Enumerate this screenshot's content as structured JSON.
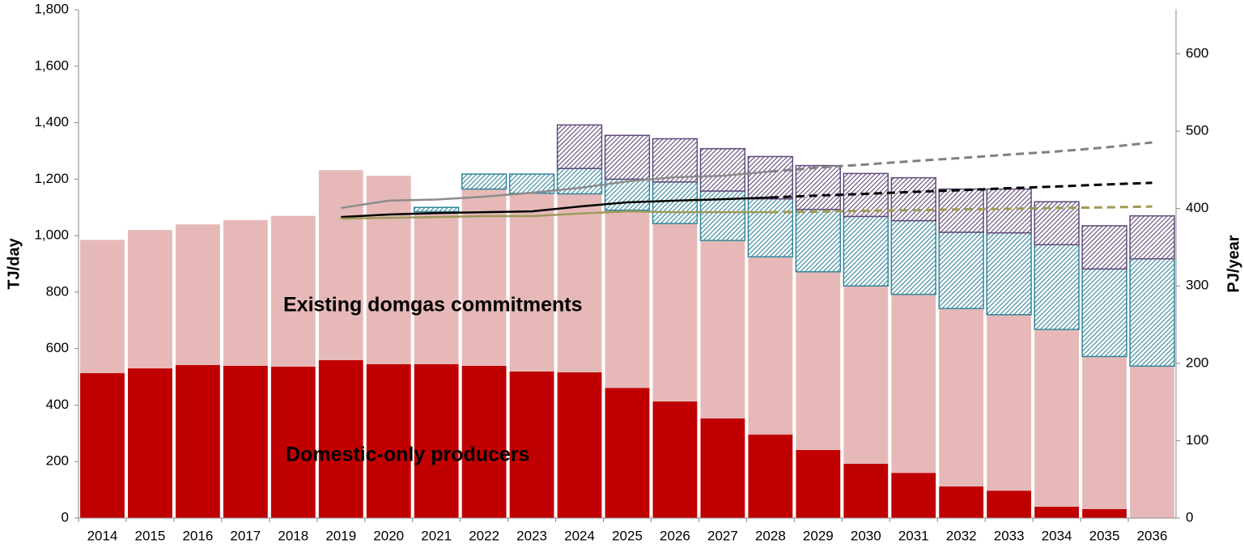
{
  "chart_data": {
    "type": "bar",
    "stacked": true,
    "categories": [
      "2014",
      "2015",
      "2016",
      "2017",
      "2018",
      "2019",
      "2020",
      "2021",
      "2022",
      "2023",
      "2024",
      "2025",
      "2026",
      "2027",
      "2028",
      "2029",
      "2030",
      "2031",
      "2032",
      "2033",
      "2034",
      "2035",
      "2036"
    ],
    "y_label": "TJ/day",
    "y2_label": "PJ/year",
    "ylim": [
      0,
      1800
    ],
    "yticks": [
      0,
      200,
      400,
      600,
      800,
      {
        "value": 1000,
        "label": "1,000"
      },
      {
        "value": 1200,
        "label": "1,200"
      },
      {
        "value": 1400,
        "label": "1,400"
      },
      {
        "value": 1600,
        "label": "1,600"
      },
      {
        "value": 1800,
        "label": "1,800"
      }
    ],
    "y2lim": [
      0,
      657
    ],
    "y2ticks": [
      0,
      100,
      200,
      300,
      400,
      500,
      600
    ],
    "series": [
      {
        "name": "Domestic-only producers",
        "type": "bar",
        "color": "#c00000",
        "values": [
          513,
          530,
          542,
          539,
          536,
          559,
          545,
          545,
          539,
          519,
          516,
          461,
          413,
          353,
          296,
          241,
          192,
          160,
          112,
          97,
          40,
          32,
          0
        ]
      },
      {
        "name": "Existing domgas commitments",
        "type": "bar",
        "color": "#e6b9b8",
        "values": [
          472,
          490,
          498,
          516,
          534,
          673,
          667,
          540,
          626,
          631,
          632,
          629,
          630,
          630,
          629,
          631,
          630,
          632,
          630,
          623,
          628,
          540,
          538
        ]
      },
      {
        "type": "bar",
        "color": "#31869b",
        "hatch": true,
        "values": [
          null,
          null,
          null,
          null,
          null,
          null,
          null,
          15,
          53,
          68,
          90,
          110,
          147,
          175,
          205,
          221,
          246,
          261,
          270,
          290,
          300,
          310,
          380
        ]
      },
      {
        "type": "bar",
        "color": "#60497a",
        "hatch": true,
        "values": [
          null,
          null,
          null,
          null,
          null,
          null,
          null,
          null,
          null,
          null,
          154,
          155,
          153,
          150,
          150,
          155,
          152,
          152,
          153,
          155,
          152,
          153,
          152
        ]
      },
      {
        "type": "line",
        "color": "#8c8c8c",
        "dashed": false,
        "values": [
          null,
          null,
          null,
          null,
          null,
          1098,
          1124,
          1128,
          1138,
          1152,
          1169,
          1192,
          1207,
          1212,
          1227,
          null,
          null,
          null,
          null,
          null,
          null,
          null,
          null
        ]
      },
      {
        "type": "line",
        "color": "#808080",
        "dashed": true,
        "values": [
          null,
          null,
          null,
          null,
          null,
          null,
          null,
          null,
          null,
          null,
          null,
          null,
          null,
          null,
          1227,
          1241,
          1252,
          1264,
          1275,
          1287,
          1298,
          1312,
          1330
        ]
      },
      {
        "type": "line",
        "color": "#000000",
        "dashed": false,
        "values": [
          null,
          null,
          null,
          null,
          null,
          1066,
          1075,
          1080,
          1083,
          1086,
          1103,
          1118,
          1124,
          1129,
          1135,
          null,
          null,
          null,
          null,
          null,
          null,
          null,
          null
        ]
      },
      {
        "type": "line",
        "color": "#000000",
        "dashed": true,
        "values": [
          null,
          null,
          null,
          null,
          null,
          null,
          null,
          null,
          null,
          null,
          null,
          null,
          null,
          null,
          1135,
          1142,
          1148,
          1155,
          1161,
          1168,
          1174,
          1181,
          1187
        ]
      },
      {
        "type": "line",
        "color": "#9c9a5c",
        "dashed": false,
        "values": [
          null,
          null,
          null,
          null,
          null,
          1060,
          1063,
          1066,
          1069,
          1069,
          1078,
          1086,
          1083,
          1083,
          1083,
          null,
          null,
          null,
          null,
          null,
          null,
          null,
          null
        ]
      },
      {
        "type": "line",
        "color": "#a09a50",
        "dashed": true,
        "values": [
          null,
          null,
          null,
          null,
          null,
          null,
          null,
          null,
          null,
          null,
          null,
          null,
          null,
          null,
          1083,
          1085,
          1088,
          1090,
          1093,
          1095,
          1098,
          1100,
          1103
        ]
      }
    ]
  }
}
